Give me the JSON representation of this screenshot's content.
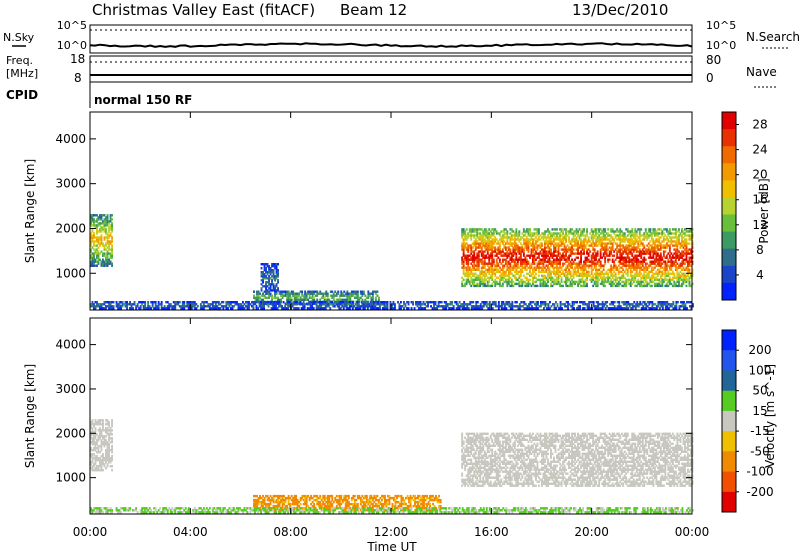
{
  "header": {
    "title": "Christmas Valley East (fitACF)",
    "beam": "Beam 12",
    "date": "13/Dec/2010"
  },
  "top_panels": {
    "nsky_label": "N.Sky",
    "nsearch_label": "N.Search",
    "noise_ticks": [
      "10^5",
      "10^0"
    ],
    "freq_label": "Freq.",
    "freq_unit": "[MHz]",
    "freq_ticks": [
      "18",
      "8"
    ],
    "nave_label": "Nave",
    "nave_ticks": [
      "80",
      "0"
    ],
    "cpid_label": "CPID",
    "cpid_value": "normal 150 RF"
  },
  "chart_data": [
    {
      "type": "heatmap",
      "panel": "power",
      "ylabel": "Slant Range [km]",
      "xlabel": "",
      "x_ticks": [
        "00:00",
        "04:00",
        "08:00",
        "12:00",
        "16:00",
        "20:00",
        "00:00"
      ],
      "xlim": [
        0,
        24
      ],
      "ylim": [
        180,
        4600
      ],
      "y_ticks": [
        1000,
        2000,
        3000,
        4000
      ],
      "colorbar": {
        "label": "Power [dB]",
        "ticks": [
          "4",
          "8",
          "12",
          "16",
          "20",
          "24",
          "28"
        ],
        "colors": [
          "#0022ff",
          "#1a45c8",
          "#2f6e8a",
          "#3c9a63",
          "#68bf3a",
          "#b8d230",
          "#f0c000",
          "#f39a00",
          "#f06a00",
          "#e83000",
          "#e00000"
        ]
      },
      "regions": [
        {
          "t": [
            0.0,
            0.9
          ],
          "range": [
            1150,
            2300
          ],
          "value": 16
        },
        {
          "t": [
            6.5,
            11.5
          ],
          "range": [
            300,
            600
          ],
          "value": 10
        },
        {
          "t": [
            6.8,
            7.5
          ],
          "range": [
            600,
            1200
          ],
          "value": 6
        },
        {
          "t": [
            14.8,
            24.0
          ],
          "range": [
            700,
            2000
          ],
          "value": 24
        },
        {
          "t": [
            0.0,
            24.0
          ],
          "range": [
            200,
            350
          ],
          "value": 6
        }
      ]
    },
    {
      "type": "heatmap",
      "panel": "velocity",
      "ylabel": "Slant Range [km]",
      "xlabel": "Time UT",
      "x_ticks": [
        "00:00",
        "04:00",
        "08:00",
        "12:00",
        "16:00",
        "20:00",
        "00:00"
      ],
      "xlim": [
        0,
        24
      ],
      "ylim": [
        180,
        4600
      ],
      "y_ticks": [
        1000,
        2000,
        3000,
        4000
      ],
      "colorbar": {
        "label": "Velocity [m s^-1]",
        "ticks": [
          "200",
          "100",
          "50",
          "15",
          "-15",
          "-50",
          "-100",
          "-200"
        ],
        "colors": [
          "#0022ff",
          "#2255ee",
          "#226699",
          "#55cc22",
          "#c8c8c0",
          "#f0c000",
          "#f08a00",
          "#f05000",
          "#e00000"
        ]
      },
      "regions": [
        {
          "t": [
            0.0,
            0.9
          ],
          "range": [
            1150,
            2300
          ],
          "value": 0
        },
        {
          "t": [
            6.5,
            14.0
          ],
          "range": [
            250,
            600
          ],
          "value": -60
        },
        {
          "t": [
            14.8,
            24.0
          ],
          "range": [
            800,
            2000
          ],
          "value": 0
        },
        {
          "t": [
            0.0,
            24.0
          ],
          "range": [
            200,
            300
          ],
          "value": 20
        }
      ]
    }
  ]
}
